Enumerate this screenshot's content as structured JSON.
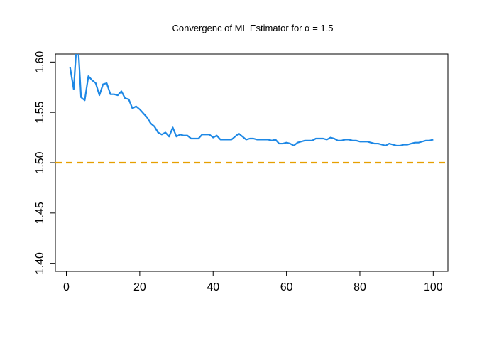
{
  "chart_data": {
    "type": "line",
    "title": "Convergenc of ML Estimator for α = 1.5",
    "xlabel": "",
    "ylabel": "",
    "xlim": [
      -3,
      104
    ],
    "ylim": [
      1.392,
      1.608
    ],
    "x_ticks": [
      0,
      20,
      40,
      60,
      80,
      100
    ],
    "x_tick_labels": [
      "0",
      "20",
      "40",
      "60",
      "80",
      "100"
    ],
    "y_ticks": [
      1.4,
      1.45,
      1.5,
      1.55,
      1.6
    ],
    "y_tick_labels": [
      "1.40",
      "1.45",
      "1.50",
      "1.55",
      "1.60"
    ],
    "grid": false,
    "legend": "none",
    "reference_line": {
      "y": 1.5,
      "style": "dashed",
      "color": "#E69F00"
    },
    "series": [
      {
        "color": "#1E88E5",
        "x": [
          1,
          2,
          3,
          4,
          5,
          6,
          7,
          8,
          9,
          10,
          11,
          12,
          13,
          14,
          15,
          16,
          17,
          18,
          19,
          20,
          21,
          22,
          23,
          24,
          25,
          26,
          27,
          28,
          29,
          30,
          31,
          32,
          33,
          34,
          35,
          36,
          37,
          38,
          39,
          40,
          41,
          42,
          43,
          44,
          45,
          46,
          47,
          48,
          49,
          50,
          51,
          52,
          53,
          54,
          55,
          56,
          57,
          58,
          59,
          60,
          61,
          62,
          63,
          64,
          65,
          66,
          67,
          68,
          69,
          70,
          71,
          72,
          73,
          74,
          75,
          76,
          77,
          78,
          79,
          80,
          81,
          82,
          83,
          84,
          85,
          86,
          87,
          88,
          89,
          90,
          91,
          92,
          93,
          94,
          95,
          96,
          97,
          98,
          99,
          100
        ],
        "values": [
          1.595,
          1.573,
          1.63,
          1.565,
          1.562,
          1.586,
          1.582,
          1.579,
          1.567,
          1.578,
          1.579,
          1.568,
          1.568,
          1.567,
          1.571,
          1.564,
          1.563,
          1.554,
          1.556,
          1.553,
          1.549,
          1.545,
          1.539,
          1.536,
          1.53,
          1.528,
          1.53,
          1.526,
          1.535,
          1.526,
          1.528,
          1.527,
          1.527,
          1.524,
          1.524,
          1.524,
          1.528,
          1.528,
          1.528,
          1.525,
          1.527,
          1.523,
          1.523,
          1.523,
          1.523,
          1.526,
          1.529,
          1.526,
          1.523,
          1.524,
          1.524,
          1.523,
          1.523,
          1.523,
          1.523,
          1.522,
          1.523,
          1.519,
          1.519,
          1.52,
          1.519,
          1.517,
          1.52,
          1.521,
          1.522,
          1.522,
          1.522,
          1.524,
          1.524,
          1.524,
          1.523,
          1.525,
          1.524,
          1.522,
          1.522,
          1.523,
          1.523,
          1.522,
          1.522,
          1.521,
          1.521,
          1.521,
          1.52,
          1.519,
          1.519,
          1.518,
          1.517,
          1.519,
          1.518,
          1.517,
          1.517,
          1.518,
          1.518,
          1.519,
          1.52,
          1.52,
          1.521,
          1.522,
          1.522,
          1.523
        ]
      }
    ]
  }
}
